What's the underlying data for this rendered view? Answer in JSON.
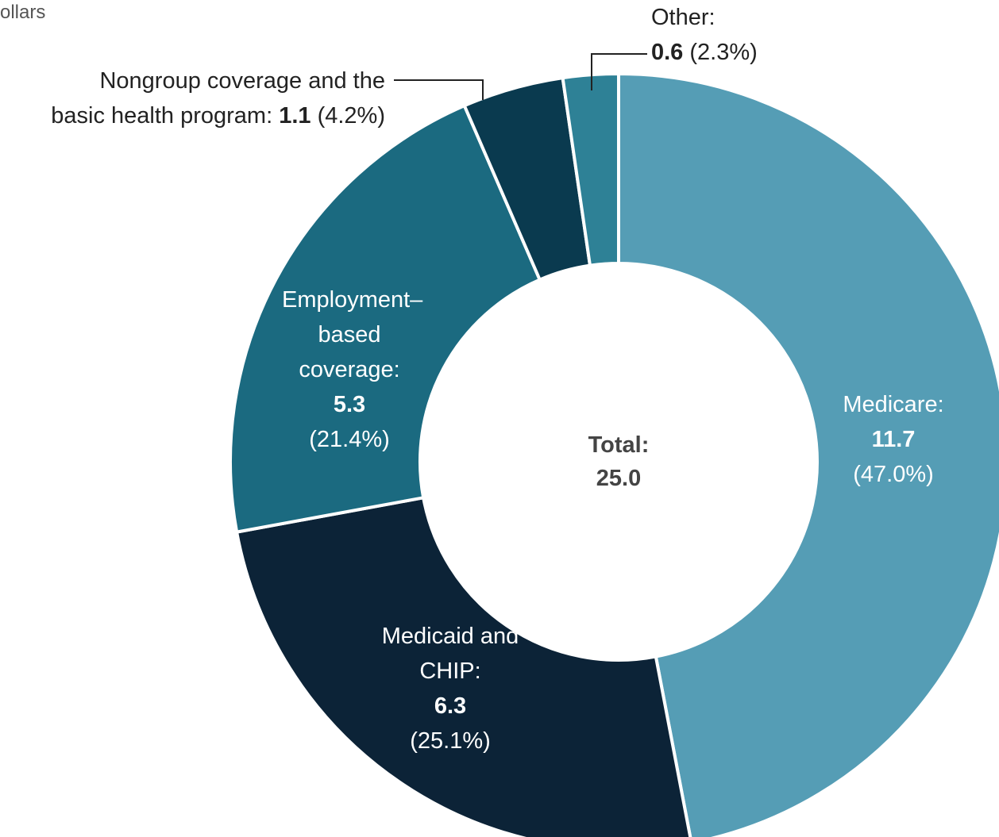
{
  "chart_data": {
    "type": "donut",
    "subtitle": "ollars",
    "categories": [
      "Medicare:",
      "Medicaid and CHIP:",
      "Employment–based coverage:",
      "Nongroup coverage and the basic health program:",
      "Other:"
    ],
    "values": [
      11.7,
      6.3,
      5.3,
      1.1,
      0.6
    ],
    "shares": [
      47,
      25.1,
      21.4,
      4.2,
      2.3
    ],
    "share_labels": [
      "(47.0%)",
      "(25.1%)",
      "(21.4%)",
      "(4.2%)",
      "(2.3%)"
    ],
    "colors": [
      "#559db5",
      "#0c2337",
      "#1b6a80",
      "#0a3a4f",
      "#2e8196"
    ],
    "center_label": "Total:",
    "total": "25.0"
  }
}
